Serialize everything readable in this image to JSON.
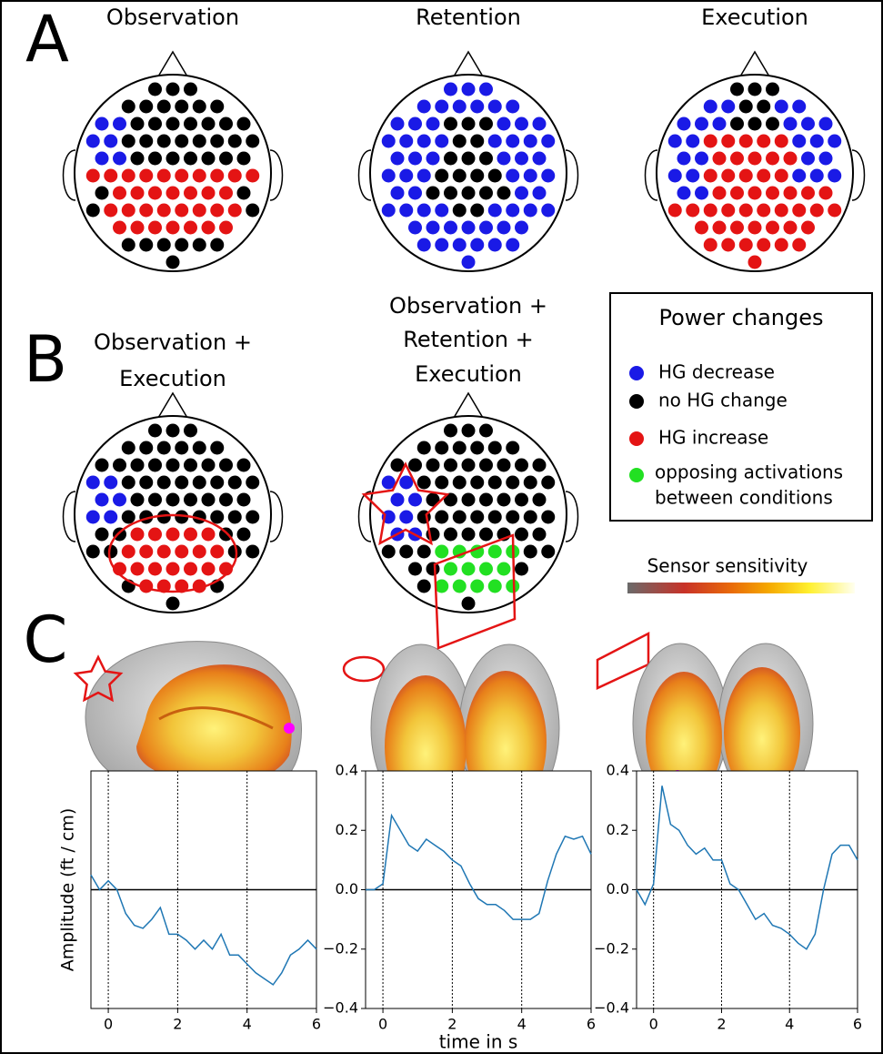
{
  "panels": {
    "a": {
      "letter": "A",
      "titles": [
        "Observation",
        "Retention",
        "Execution"
      ]
    },
    "b": {
      "letter": "B",
      "titles": [
        [
          "Observation +",
          "Execution"
        ],
        [
          "Observation +",
          "Retention +",
          "Execution"
        ]
      ]
    },
    "c": {
      "letter": "C"
    }
  },
  "legend": {
    "title": "Power changes",
    "items": [
      {
        "label": "HG decrease",
        "color": "#1a1ae6"
      },
      {
        "label": "no HG change",
        "color": "#000000"
      },
      {
        "label": "HG increase",
        "color": "#e41414"
      },
      {
        "label": [
          "opposing activations",
          "between conditions"
        ],
        "color": "#22e022"
      }
    ]
  },
  "colorbar": {
    "label": "Sensor sensitivity"
  },
  "chart_data": [
    {
      "type": "line",
      "ylabel": "Amplitude (ft / cm)",
      "x": [
        -0.5,
        -0.25,
        0,
        0.25,
        0.5,
        0.75,
        1,
        1.25,
        1.5,
        1.75,
        2,
        2.25,
        2.5,
        2.75,
        3,
        3.25,
        3.5,
        3.75,
        4,
        4.25,
        4.5,
        4.75,
        5,
        5.25,
        5.5,
        5.75,
        6
      ],
      "series": [
        {
          "color": "#1f77b4",
          "values": [
            0.05,
            0.0,
            0.03,
            0.0,
            -0.08,
            -0.12,
            -0.13,
            -0.1,
            -0.06,
            -0.15,
            -0.15,
            -0.17,
            -0.2,
            -0.17,
            -0.2,
            -0.15,
            -0.22,
            -0.22,
            -0.25,
            -0.28,
            -0.3,
            -0.32,
            -0.28,
            -0.22,
            -0.2,
            -0.17,
            -0.2
          ]
        }
      ],
      "xlim": [
        -0.5,
        6
      ],
      "ylim": [
        -0.4,
        0.4
      ],
      "xticks": [
        0,
        2,
        4,
        6
      ],
      "vlines": [
        0,
        2,
        4
      ],
      "hline": 0
    },
    {
      "type": "line",
      "xlabel": "time in s",
      "x": [
        -0.5,
        -0.25,
        0,
        0.25,
        0.5,
        0.75,
        1,
        1.25,
        1.5,
        1.75,
        2,
        2.25,
        2.5,
        2.75,
        3,
        3.25,
        3.5,
        3.75,
        4,
        4.25,
        4.5,
        4.75,
        5,
        5.25,
        5.5,
        5.75,
        6
      ],
      "series": [
        {
          "color": "#1f77b4",
          "values": [
            0.0,
            0.0,
            0.02,
            0.25,
            0.2,
            0.15,
            0.13,
            0.17,
            0.15,
            0.13,
            0.1,
            0.08,
            0.02,
            -0.03,
            -0.05,
            -0.05,
            -0.07,
            -0.1,
            -0.1,
            -0.1,
            -0.08,
            0.03,
            0.12,
            0.18,
            0.17,
            0.18,
            0.12
          ]
        }
      ],
      "xlim": [
        -0.5,
        6
      ],
      "ylim": [
        -0.4,
        0.4
      ],
      "xticks": [
        0,
        2,
        4,
        6
      ],
      "yticks": [
        0.4,
        0.2,
        {
          "value": 0,
          "label": "0.0"
        },
        {
          "value": -0.2,
          "label": "−0.2"
        },
        {
          "value": -0.4,
          "label": "−0.4"
        }
      ],
      "vlines": [
        0,
        2,
        4
      ],
      "hline": 0
    },
    {
      "type": "line",
      "x": [
        -0.5,
        -0.25,
        0,
        0.25,
        0.5,
        0.75,
        1,
        1.25,
        1.5,
        1.75,
        2,
        2.25,
        2.5,
        2.75,
        3,
        3.25,
        3.5,
        3.75,
        4,
        4.25,
        4.5,
        4.75,
        5,
        5.25,
        5.5,
        5.75,
        6
      ],
      "series": [
        {
          "color": "#1f77b4",
          "values": [
            0.0,
            -0.05,
            0.02,
            0.35,
            0.22,
            0.2,
            0.15,
            0.12,
            0.14,
            0.1,
            0.1,
            0.02,
            0.0,
            -0.05,
            -0.1,
            -0.08,
            -0.12,
            -0.13,
            -0.15,
            -0.18,
            -0.2,
            -0.15,
            0.0,
            0.12,
            0.15,
            0.15,
            0.1
          ]
        }
      ],
      "xlim": [
        -0.5,
        6
      ],
      "ylim": [
        -0.4,
        0.4
      ],
      "xticks": [
        0,
        2,
        4,
        6
      ],
      "yticks": [
        0.4,
        0.2,
        {
          "value": 0,
          "label": "0.0"
        },
        {
          "value": -0.2,
          "label": "−0.2"
        },
        {
          "value": -0.4,
          "label": "−0.4"
        }
      ],
      "vlines": [
        0,
        2,
        4
      ],
      "hline": 0
    }
  ]
}
